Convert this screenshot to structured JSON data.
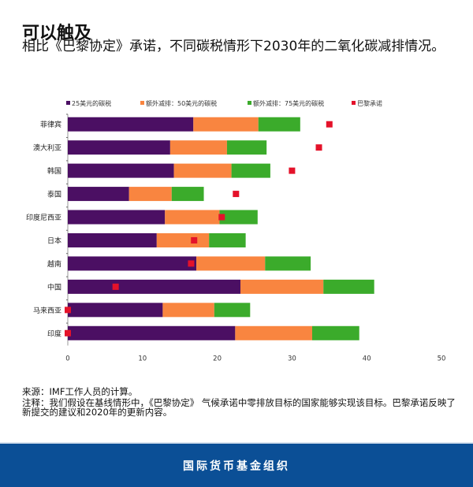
{
  "header": {
    "title": "可以触及",
    "subtitle": "相比《巴黎协定》承诺，不同碳税情形下2030年的二氧化碳减排情况。"
  },
  "chart_data": {
    "type": "bar",
    "orientation": "horizontal",
    "stacked": true,
    "categories": [
      "菲律宾",
      "澳大利亚",
      "韩国",
      "泰国",
      "印度尼西亚",
      "日本",
      "越南",
      "中国",
      "马来西亚",
      "印度"
    ],
    "series": [
      {
        "name": "25美元的碳税",
        "color": "#4b0f63",
        "values": [
          16.8,
          13.7,
          14.2,
          8.2,
          13.0,
          11.9,
          17.2,
          23.1,
          12.7,
          22.4
        ]
      },
      {
        "name": "额外减排：50美元的碳税",
        "color": "#f98540",
        "values": [
          8.7,
          7.6,
          7.7,
          5.7,
          7.3,
          7.0,
          9.2,
          11.1,
          6.9,
          10.3
        ]
      },
      {
        "name": "额外减排：75美元的碳税",
        "color": "#3bab2b",
        "values": [
          5.6,
          5.3,
          5.2,
          4.3,
          5.1,
          4.9,
          6.1,
          6.8,
          4.8,
          6.3
        ]
      }
    ],
    "markers": {
      "name": "巴黎承诺",
      "color": "#e4122a",
      "values": [
        35.0,
        33.6,
        30.0,
        22.5,
        20.6,
        16.9,
        16.5,
        6.4,
        0,
        0
      ]
    },
    "xlim": [
      0,
      50
    ],
    "xticks": [
      "0",
      "10",
      "20",
      "30",
      "40",
      "50"
    ],
    "xtick_values": [
      0,
      10,
      20,
      30,
      40,
      50
    ],
    "legend_position": "top",
    "grid": false
  },
  "notes": {
    "source": "来源：IMF工作人员的计算。",
    "note": "注释：我们假设在基线情形中，《巴黎协定》 气候承诺中零排放目标的国家能够实现该目标。巴黎承诺反映了新提交的建议和2020年的更新内容。"
  },
  "footer": {
    "org": "国际货币基金组织"
  }
}
